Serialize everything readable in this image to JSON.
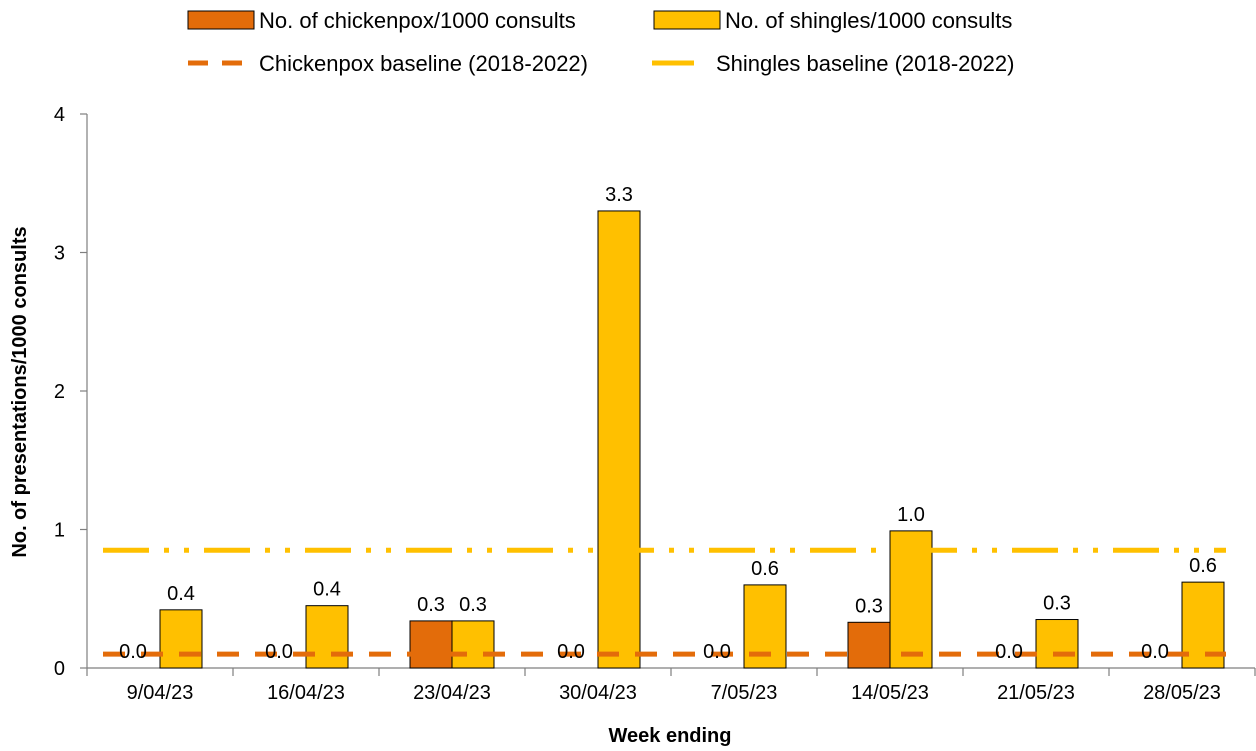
{
  "chart_data": {
    "type": "bar",
    "categories": [
      "9/04/23",
      "16/04/23",
      "23/04/23",
      "30/04/23",
      "7/05/23",
      "14/05/23",
      "21/05/23",
      "28/05/23"
    ],
    "series": [
      {
        "name": "No. of chickenpox/1000 consults",
        "type": "bar",
        "color": "#E36C0A",
        "values": [
          0.0,
          0.0,
          0.34,
          0.0,
          0.0,
          0.33,
          0.0,
          0.0
        ],
        "labels": [
          "0.0",
          "0.0",
          "0.3",
          "0.0",
          "0.0",
          "0.3",
          "0.0",
          "0.0"
        ]
      },
      {
        "name": "No. of shingles/1000 consults",
        "type": "bar",
        "color": "#FFC000",
        "values": [
          0.42,
          0.45,
          0.34,
          3.3,
          0.6,
          0.99,
          0.35,
          0.62
        ],
        "labels": [
          "0.4",
          "0.4",
          "0.3",
          "3.3",
          "0.6",
          "1.0",
          "0.3",
          "0.6"
        ]
      },
      {
        "name": "Chickenpox baseline (2018-2022)",
        "type": "line",
        "style": "dashed",
        "color": "#E36C0A",
        "values": [
          0.1,
          0.1,
          0.1,
          0.1,
          0.1,
          0.1,
          0.1,
          0.1
        ]
      },
      {
        "name": "Shingles baseline (2018-2022)",
        "type": "line",
        "style": "long-dash-dot-dot",
        "color": "#FFC000",
        "values": [
          0.85,
          0.85,
          0.85,
          0.85,
          0.85,
          0.85,
          0.85,
          0.85
        ]
      }
    ],
    "xlabel": "Week ending",
    "ylabel": "No. of presentations/1000  consults",
    "ylim": [
      0,
      4
    ],
    "yticks": [
      "0",
      "1",
      "2",
      "3",
      "4"
    ],
    "grid": false,
    "legend_position": "top"
  }
}
